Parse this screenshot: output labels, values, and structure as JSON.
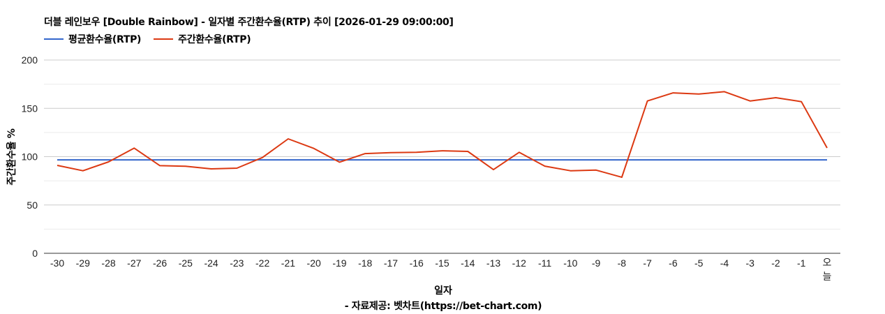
{
  "header": {
    "title": "더블 레인보우 [Double Rainbow] - 일자별 주간환수율(RTP) 추이 [2026-01-29 09:00:00]"
  },
  "legend": [
    {
      "label": "평균환수율(RTP)",
      "color": "#3366cc"
    },
    {
      "label": "주간환수율(RTP)",
      "color": "#dc3912"
    }
  ],
  "axes": {
    "ylabel": "주간환수율 %",
    "xlabel": "일자",
    "yticks": [
      "0",
      "50",
      "100",
      "150",
      "200"
    ]
  },
  "footer": {
    "source": "- 자료제공: 벳차트(https://bet-chart.com)"
  },
  "chart_data": {
    "type": "line",
    "title": "더블 레인보우 [Double Rainbow] - 일자별 주간환수율(RTP) 추이 [2026-01-29 09:00:00]",
    "xlabel": "일자",
    "ylabel": "주간환수율 %",
    "ylim": [
      0,
      200
    ],
    "yticks": [
      0,
      50,
      100,
      150,
      200
    ],
    "grid": true,
    "legend_position": "top-left",
    "categories": [
      "-30",
      "-29",
      "-28",
      "-27",
      "-26",
      "-25",
      "-24",
      "-23",
      "-22",
      "-21",
      "-20",
      "-19",
      "-18",
      "-17",
      "-16",
      "-15",
      "-14",
      "-13",
      "-12",
      "-11",
      "-10",
      "-9",
      "-8",
      "-7",
      "-6",
      "-5",
      "-4",
      "-3",
      "-2",
      "-1",
      "오늘"
    ],
    "series": [
      {
        "name": "평균환수율(RTP)",
        "color": "#3366cc",
        "values": [
          96.7,
          96.7,
          96.7,
          96.7,
          96.7,
          96.7,
          96.7,
          96.7,
          96.7,
          96.7,
          96.7,
          96.7,
          96.7,
          96.7,
          96.7,
          96.7,
          96.7,
          96.7,
          96.7,
          96.7,
          96.7,
          96.7,
          96.7,
          96.7,
          96.7,
          96.7,
          96.7,
          96.7,
          96.7,
          96.7,
          96.7
        ]
      },
      {
        "name": "주간환수율(RTP)",
        "color": "#dc3912",
        "values": [
          91.0,
          85.4,
          94.6,
          108.8,
          90.7,
          90.0,
          87.4,
          88.1,
          99.1,
          118.4,
          108.5,
          94.3,
          103.2,
          104.2,
          104.5,
          106.1,
          105.4,
          86.6,
          104.5,
          90.2,
          85.4,
          86.1,
          78.7,
          157.6,
          166.0,
          164.8,
          167.2,
          157.6,
          161.0,
          156.9,
          109.0
        ]
      }
    ]
  }
}
